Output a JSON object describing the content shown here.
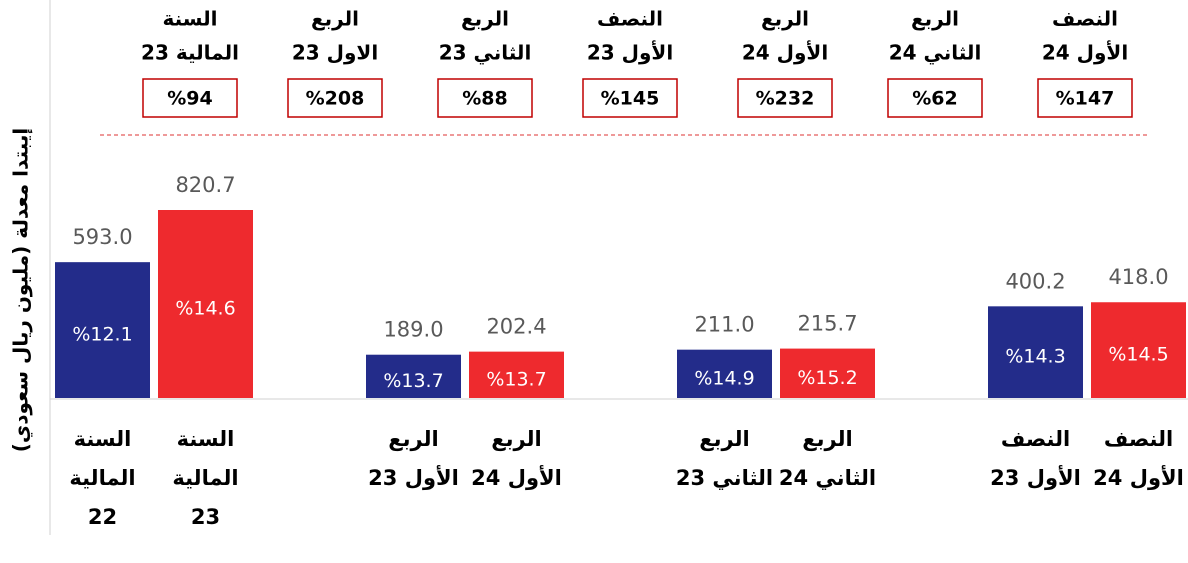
{
  "chart_data": {
    "type": "bar",
    "y_label": "إيبتدا معدلة (مليون ريال سعودي)",
    "series": [
      {
        "color": "#232c8a",
        "labels": [
          [
            "السنة",
            "المالية",
            "22"
          ],
          [
            "الربع",
            "الأول 23"
          ],
          [
            "الربع",
            "الثاني 23"
          ],
          [
            "النصف",
            "الأول 23"
          ]
        ],
        "values": [
          593.0,
          189.0,
          211.0,
          400.2
        ],
        "value_labels": [
          "593.0",
          "189.0",
          "211.0",
          "400.2"
        ],
        "margins": [
          12.1,
          13.7,
          14.9,
          14.3
        ],
        "margin_labels": [
          "%12.1",
          "%13.7",
          "%14.9",
          "%14.3"
        ]
      },
      {
        "color": "#ee2a2e",
        "labels": [
          [
            "السنة",
            "المالية",
            "23"
          ],
          [
            "الربع",
            "الأول 24"
          ],
          [
            "الربع",
            "الثاني 24"
          ],
          [
            "النصف",
            "الأول 24"
          ]
        ],
        "values": [
          820.7,
          202.4,
          215.7,
          418.0
        ],
        "value_labels": [
          "820.7",
          "202.4",
          "215.7",
          "418.0"
        ],
        "margins": [
          14.6,
          13.7,
          15.2,
          14.5
        ],
        "margin_labels": [
          "%14.6",
          "%13.7",
          "%15.2",
          "%14.5"
        ]
      }
    ],
    "growth": {
      "labels": [
        [
          "السنة",
          "المالية 23"
        ],
        [
          "الربع",
          "الاول 23"
        ],
        [
          "الربع",
          "الثاني 23"
        ],
        [
          "النصف",
          "الأول 23"
        ],
        [
          "الربع",
          "الأول 24"
        ],
        [
          "الربع",
          "الثاني 24"
        ],
        [
          "النصف",
          "الأول 24"
        ]
      ],
      "values": [
        94,
        208,
        88,
        145,
        232,
        62,
        147
      ],
      "value_labels": [
        "%94",
        "%208",
        "%88",
        "%145",
        "%232",
        "%62",
        "%147"
      ]
    }
  }
}
